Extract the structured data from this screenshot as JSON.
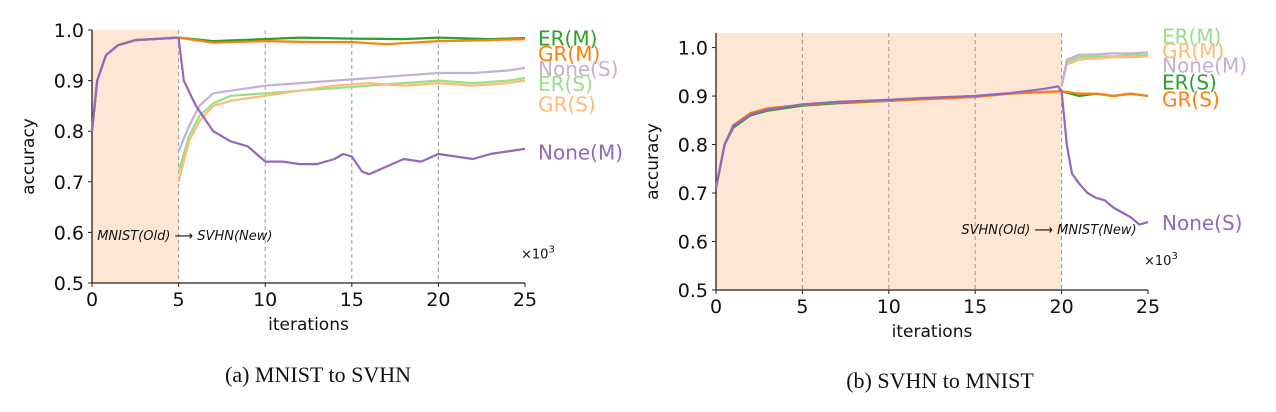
{
  "chart_data": [
    {
      "type": "line",
      "caption": "(a) MNIST to SVHN",
      "xlabel": "iterations",
      "ylabel": "accuracy",
      "x_multiplier": "×10",
      "x_multiplier_exp": "3",
      "xlim": [
        0,
        25
      ],
      "ylim": [
        0.5,
        1.0
      ],
      "xticks": [
        0,
        5,
        10,
        15,
        20,
        25
      ],
      "yticks": [
        "0.5",
        "0.6",
        "0.7",
        "0.8",
        "0.9",
        "1.0"
      ],
      "grid": "vertical dashed lines at 5,10,15,20",
      "shaded_region": [
        0,
        5
      ],
      "shade_color": "#fde6d4",
      "annotation": {
        "text": "MNIST(Old) ⟶ SVHN(New)",
        "x": 0.3,
        "y": 0.585
      },
      "series": [
        {
          "name": "ER(M)",
          "color": "#2ca02c",
          "label_y": 0.985,
          "points": [
            [
              0,
              0.8
            ],
            [
              0.3,
              0.9
            ],
            [
              0.8,
              0.95
            ],
            [
              1.5,
              0.97
            ],
            [
              2.5,
              0.98
            ],
            [
              5,
              0.985
            ],
            [
              7,
              0.978
            ],
            [
              10,
              0.982
            ],
            [
              12,
              0.985
            ],
            [
              15,
              0.983
            ],
            [
              18,
              0.982
            ],
            [
              20,
              0.985
            ],
            [
              23,
              0.982
            ],
            [
              25,
              0.984
            ]
          ]
        },
        {
          "name": "GR(M)",
          "color": "#ff7f0e",
          "label_y": 0.955,
          "points": [
            [
              0,
              0.8
            ],
            [
              0.3,
              0.9
            ],
            [
              0.8,
              0.95
            ],
            [
              1.5,
              0.97
            ],
            [
              2.5,
              0.98
            ],
            [
              5,
              0.985
            ],
            [
              7,
              0.975
            ],
            [
              10,
              0.978
            ],
            [
              13,
              0.976
            ],
            [
              15,
              0.976
            ],
            [
              17,
              0.972
            ],
            [
              20,
              0.978
            ],
            [
              23,
              0.98
            ],
            [
              25,
              0.982
            ]
          ]
        },
        {
          "name": "None(S)",
          "color": "#c5b0d5",
          "label_y": 0.925,
          "points": [
            [
              5,
              0.76
            ],
            [
              5.6,
              0.81
            ],
            [
              6.2,
              0.85
            ],
            [
              7,
              0.875
            ],
            [
              8,
              0.88
            ],
            [
              10,
              0.89
            ],
            [
              12,
              0.895
            ],
            [
              14,
              0.9
            ],
            [
              16,
              0.905
            ],
            [
              18,
              0.91
            ],
            [
              20,
              0.915
            ],
            [
              22,
              0.915
            ],
            [
              24,
              0.92
            ],
            [
              25,
              0.925
            ]
          ]
        },
        {
          "name": "ER(S)",
          "color": "#98df8a",
          "label_y": 0.895,
          "points": [
            [
              5,
              0.72
            ],
            [
              5.6,
              0.79
            ],
            [
              6.2,
              0.83
            ],
            [
              7,
              0.855
            ],
            [
              8,
              0.87
            ],
            [
              10,
              0.875
            ],
            [
              12,
              0.88
            ],
            [
              14,
              0.885
            ],
            [
              16,
              0.89
            ],
            [
              18,
              0.895
            ],
            [
              20,
              0.9
            ],
            [
              22,
              0.895
            ],
            [
              24,
              0.9
            ],
            [
              25,
              0.905
            ]
          ]
        },
        {
          "name": "GR(S)",
          "color": "#ffbb78",
          "label_y": 0.855,
          "points": [
            [
              5,
              0.7
            ],
            [
              5.6,
              0.78
            ],
            [
              6.2,
              0.82
            ],
            [
              7,
              0.85
            ],
            [
              8,
              0.86
            ],
            [
              10,
              0.87
            ],
            [
              12,
              0.88
            ],
            [
              14,
              0.89
            ],
            [
              16,
              0.895
            ],
            [
              18,
              0.89
            ],
            [
              20,
              0.895
            ],
            [
              22,
              0.89
            ],
            [
              24,
              0.895
            ],
            [
              25,
              0.9
            ]
          ]
        },
        {
          "name": "None(M)",
          "color": "#9467bd",
          "label_y": 0.76,
          "points": [
            [
              0,
              0.8
            ],
            [
              0.3,
              0.9
            ],
            [
              0.8,
              0.95
            ],
            [
              1.5,
              0.97
            ],
            [
              2.5,
              0.98
            ],
            [
              5,
              0.985
            ],
            [
              5.3,
              0.9
            ],
            [
              6,
              0.85
            ],
            [
              7,
              0.8
            ],
            [
              8,
              0.78
            ],
            [
              9,
              0.77
            ],
            [
              10,
              0.74
            ],
            [
              11,
              0.74
            ],
            [
              12,
              0.735
            ],
            [
              13,
              0.735
            ],
            [
              14,
              0.745
            ],
            [
              14.5,
              0.755
            ],
            [
              15,
              0.75
            ],
            [
              15.6,
              0.72
            ],
            [
              16,
              0.715
            ],
            [
              17,
              0.73
            ],
            [
              18,
              0.745
            ],
            [
              19,
              0.74
            ],
            [
              20,
              0.755
            ],
            [
              21,
              0.75
            ],
            [
              22,
              0.745
            ],
            [
              23,
              0.755
            ],
            [
              24,
              0.76
            ],
            [
              25,
              0.765
            ]
          ]
        }
      ]
    },
    {
      "type": "line",
      "caption": "(b) SVHN to MNIST",
      "xlabel": "iterations",
      "ylabel": "accuracy",
      "x_multiplier": "×10",
      "x_multiplier_exp": "3",
      "xlim": [
        0,
        25
      ],
      "ylim": [
        0.5,
        1.03
      ],
      "xticks": [
        0,
        5,
        10,
        15,
        20,
        25
      ],
      "yticks": [
        "0.5",
        "0.6",
        "0.7",
        "0.8",
        "0.9",
        "1.0"
      ],
      "grid": "vertical dashed lines at 5,10,15,20",
      "shaded_region": [
        0,
        20
      ],
      "shade_color": "#fde6d4",
      "annotation": {
        "text": "SVHN(Old) ⟶ MNIST(New)",
        "x": 14.2,
        "y": 0.615
      },
      "series": [
        {
          "name": "ER(M)",
          "color": "#98df8a",
          "label_y": 1.025,
          "points": [
            [
              20,
              0.92
            ],
            [
              20.3,
              0.97
            ],
            [
              21,
              0.98
            ],
            [
              22,
              0.982
            ],
            [
              23,
              0.982
            ],
            [
              24,
              0.984
            ],
            [
              25,
              0.985
            ]
          ]
        },
        {
          "name": "GR(M)",
          "color": "#ffbb78",
          "label_y": 0.995,
          "points": [
            [
              20,
              0.92
            ],
            [
              20.3,
              0.965
            ],
            [
              21,
              0.975
            ],
            [
              22,
              0.978
            ],
            [
              23,
              0.98
            ],
            [
              24,
              0.98
            ],
            [
              25,
              0.982
            ]
          ]
        },
        {
          "name": "None(M)",
          "color": "#c5b0d5",
          "label_y": 0.965,
          "points": [
            [
              20,
              0.92
            ],
            [
              20.3,
              0.975
            ],
            [
              21,
              0.985
            ],
            [
              22,
              0.986
            ],
            [
              23,
              0.988
            ],
            [
              24,
              0.988
            ],
            [
              25,
              0.99
            ]
          ]
        },
        {
          "name": "ER(S)",
          "color": "#2ca02c",
          "label_y": 0.93,
          "points": [
            [
              0,
              0.71
            ],
            [
              0.5,
              0.8
            ],
            [
              1,
              0.835
            ],
            [
              2,
              0.86
            ],
            [
              3,
              0.87
            ],
            [
              5,
              0.88
            ],
            [
              7,
              0.885
            ],
            [
              10,
              0.89
            ],
            [
              12,
              0.895
            ],
            [
              15,
              0.9
            ],
            [
              17,
              0.905
            ],
            [
              20,
              0.91
            ],
            [
              21,
              0.9
            ],
            [
              22,
              0.905
            ],
            [
              23,
              0.9
            ],
            [
              24,
              0.905
            ],
            [
              25,
              0.9
            ]
          ]
        },
        {
          "name": "GR(S)",
          "color": "#ff7f0e",
          "label_y": 0.895,
          "points": [
            [
              0,
              0.71
            ],
            [
              0.5,
              0.8
            ],
            [
              1,
              0.84
            ],
            [
              2,
              0.865
            ],
            [
              3,
              0.875
            ],
            [
              5,
              0.882
            ],
            [
              7,
              0.887
            ],
            [
              10,
              0.89
            ],
            [
              12,
              0.893
            ],
            [
              15,
              0.898
            ],
            [
              17,
              0.905
            ],
            [
              20,
              0.91
            ],
            [
              21,
              0.905
            ],
            [
              22,
              0.905
            ],
            [
              23,
              0.9
            ],
            [
              24,
              0.905
            ],
            [
              25,
              0.9
            ]
          ]
        },
        {
          "name": "None(S)",
          "color": "#9467bd",
          "label_y": 0.64,
          "points": [
            [
              0,
              0.71
            ],
            [
              0.5,
              0.8
            ],
            [
              1,
              0.838
            ],
            [
              2,
              0.862
            ],
            [
              3,
              0.872
            ],
            [
              5,
              0.883
            ],
            [
              7,
              0.888
            ],
            [
              10,
              0.892
            ],
            [
              12,
              0.896
            ],
            [
              15,
              0.9
            ],
            [
              17,
              0.906
            ],
            [
              19,
              0.915
            ],
            [
              19.8,
              0.92
            ],
            [
              20,
              0.91
            ],
            [
              20.3,
              0.8
            ],
            [
              20.6,
              0.74
            ],
            [
              21,
              0.72
            ],
            [
              21.5,
              0.7
            ],
            [
              22,
              0.69
            ],
            [
              22.5,
              0.685
            ],
            [
              23,
              0.67
            ],
            [
              23.5,
              0.66
            ],
            [
              24,
              0.65
            ],
            [
              24.5,
              0.635
            ],
            [
              25,
              0.64
            ]
          ]
        }
      ]
    }
  ]
}
